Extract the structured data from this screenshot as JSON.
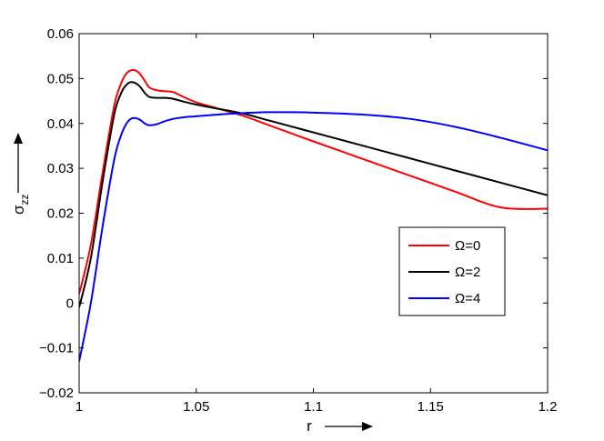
{
  "chart_data": {
    "type": "line",
    "xlabel": "r",
    "ylabel_main": "σ",
    "ylabel_sub": "zz",
    "xlim": [
      1,
      1.2
    ],
    "ylim": [
      -0.02,
      0.06
    ],
    "x_ticks": [
      1,
      1.05,
      1.1,
      1.15,
      1.2
    ],
    "x_tick_labels": [
      "1",
      "1.05",
      "1.1",
      "1.15",
      "1.2"
    ],
    "y_ticks": [
      -0.02,
      -0.01,
      0,
      0.01,
      0.02,
      0.03,
      0.04,
      0.05,
      0.06
    ],
    "y_tick_labels": [
      "−0.02",
      "−0.01",
      "0",
      "0.01",
      "0.02",
      "0.03",
      "0.04",
      "0.05",
      "0.06"
    ],
    "grid": false,
    "legend_position": "right",
    "series": [
      {
        "name": "Ω=0",
        "color": "#ff0000",
        "x": [
          1.0,
          1.005,
          1.01,
          1.015,
          1.018,
          1.02,
          1.022,
          1.024,
          1.026,
          1.028,
          1.03,
          1.033,
          1.036,
          1.04,
          1.045,
          1.05,
          1.06,
          1.07,
          1.08,
          1.09,
          1.1,
          1.12,
          1.14,
          1.16,
          1.18,
          1.2
        ],
        "y": [
          0.002,
          0.013,
          0.029,
          0.044,
          0.049,
          0.051,
          0.0518,
          0.0518,
          0.051,
          0.0495,
          0.048,
          0.0474,
          0.0472,
          0.047,
          0.0458,
          0.0447,
          0.0432,
          0.0417,
          0.0398,
          0.0379,
          0.036,
          0.0323,
          0.0286,
          0.0249,
          0.0213,
          0.021
        ]
      },
      {
        "name": "Ω=2",
        "color": "#000000",
        "x": [
          1.0,
          1.005,
          1.01,
          1.015,
          1.018,
          1.02,
          1.022,
          1.024,
          1.026,
          1.028,
          1.03,
          1.033,
          1.036,
          1.04,
          1.045,
          1.05,
          1.06,
          1.07,
          1.08,
          1.09,
          1.1,
          1.12,
          1.14,
          1.16,
          1.18,
          1.2
        ],
        "y": [
          -0.001,
          0.01,
          0.027,
          0.042,
          0.0468,
          0.0485,
          0.0492,
          0.049,
          0.0482,
          0.0468,
          0.0459,
          0.0457,
          0.0457,
          0.0455,
          0.0448,
          0.0442,
          0.0432,
          0.0422,
          0.0408,
          0.0394,
          0.038,
          0.0352,
          0.0324,
          0.0296,
          0.0268,
          0.024
        ]
      },
      {
        "name": "Ω=4",
        "color": "#0000ff",
        "x": [
          1.0,
          1.005,
          1.01,
          1.015,
          1.018,
          1.02,
          1.022,
          1.024,
          1.026,
          1.028,
          1.03,
          1.033,
          1.036,
          1.04,
          1.045,
          1.05,
          1.06,
          1.07,
          1.08,
          1.09,
          1.1,
          1.12,
          1.14,
          1.16,
          1.18,
          1.2
        ],
        "y": [
          -0.013,
          0.0,
          0.017,
          0.032,
          0.0375,
          0.0398,
          0.041,
          0.0412,
          0.0408,
          0.04,
          0.0396,
          0.0398,
          0.0404,
          0.041,
          0.0414,
          0.0416,
          0.042,
          0.0423,
          0.0425,
          0.0425,
          0.0424,
          0.042,
          0.0411,
          0.0393,
          0.0368,
          0.034
        ]
      }
    ]
  }
}
